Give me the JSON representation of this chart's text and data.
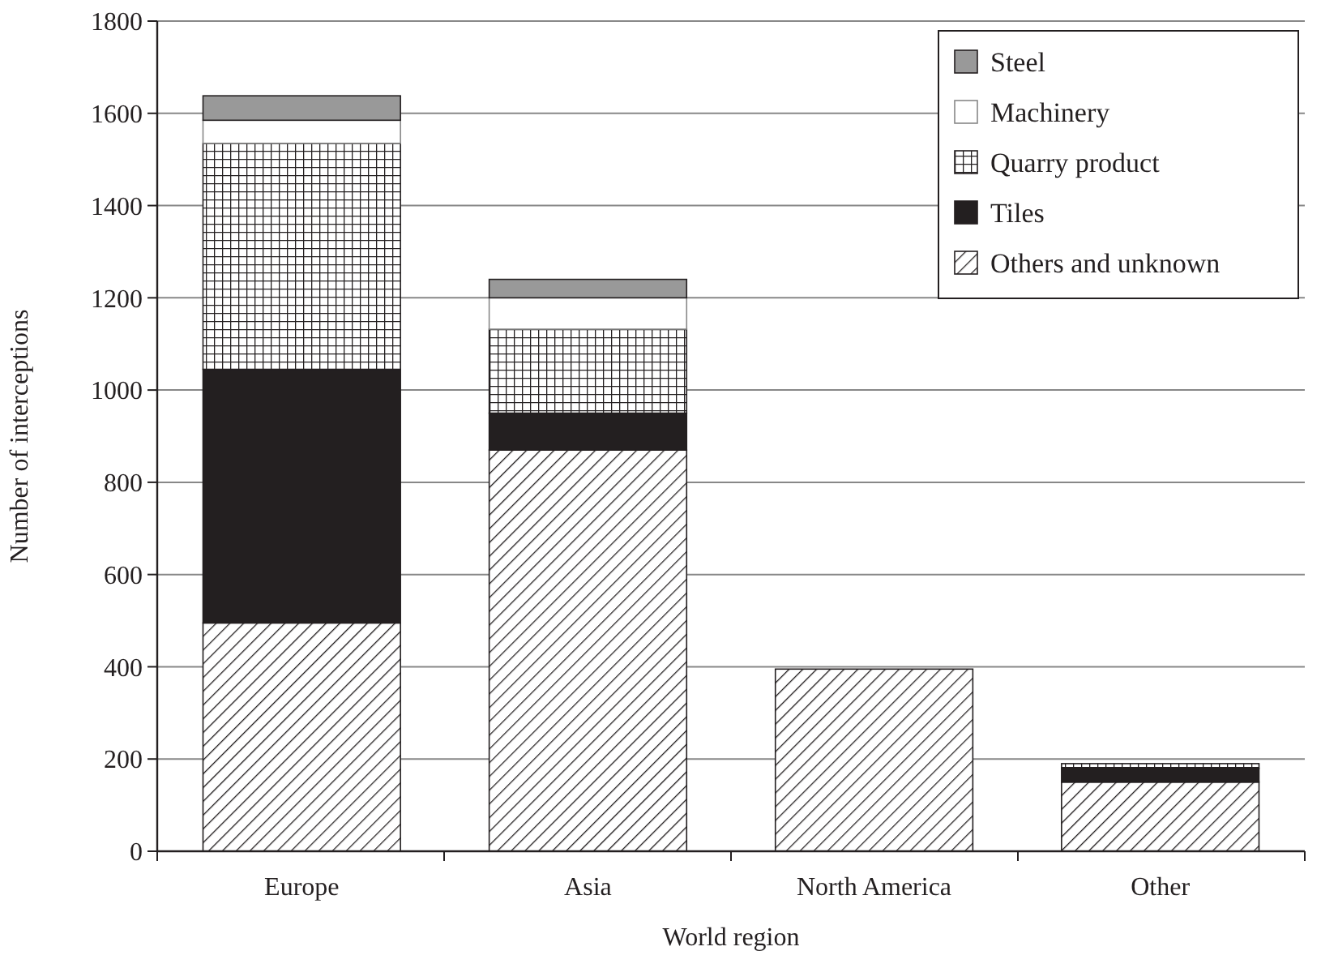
{
  "chart_data": {
    "type": "bar",
    "stacked": true,
    "xlabel": "World region",
    "ylabel": "Number of interceptions",
    "categories": [
      "Europe",
      "Asia",
      "North America",
      "Other"
    ],
    "series": [
      {
        "name": "Others and unknown",
        "color": "#231f20",
        "values": [
          495,
          870,
          395,
          150
        ]
      },
      {
        "name": "Tiles",
        "color": "#231f20",
        "values": [
          550,
          80,
          0,
          30
        ]
      },
      {
        "name": "Quarry product",
        "color": "#231f20",
        "values": [
          490,
          182,
          0,
          10
        ]
      },
      {
        "name": "Machinery",
        "color": "#ffffff",
        "values": [
          50,
          68,
          0,
          0
        ]
      },
      {
        "name": "Steel",
        "color": "#999999",
        "values": [
          53,
          40,
          0,
          0
        ]
      }
    ],
    "ylim": [
      0,
      1800
    ],
    "yticks": [
      0,
      200,
      400,
      600,
      800,
      1000,
      1200,
      1400,
      1600,
      1800
    ],
    "grid": "y",
    "legend": "top right"
  }
}
